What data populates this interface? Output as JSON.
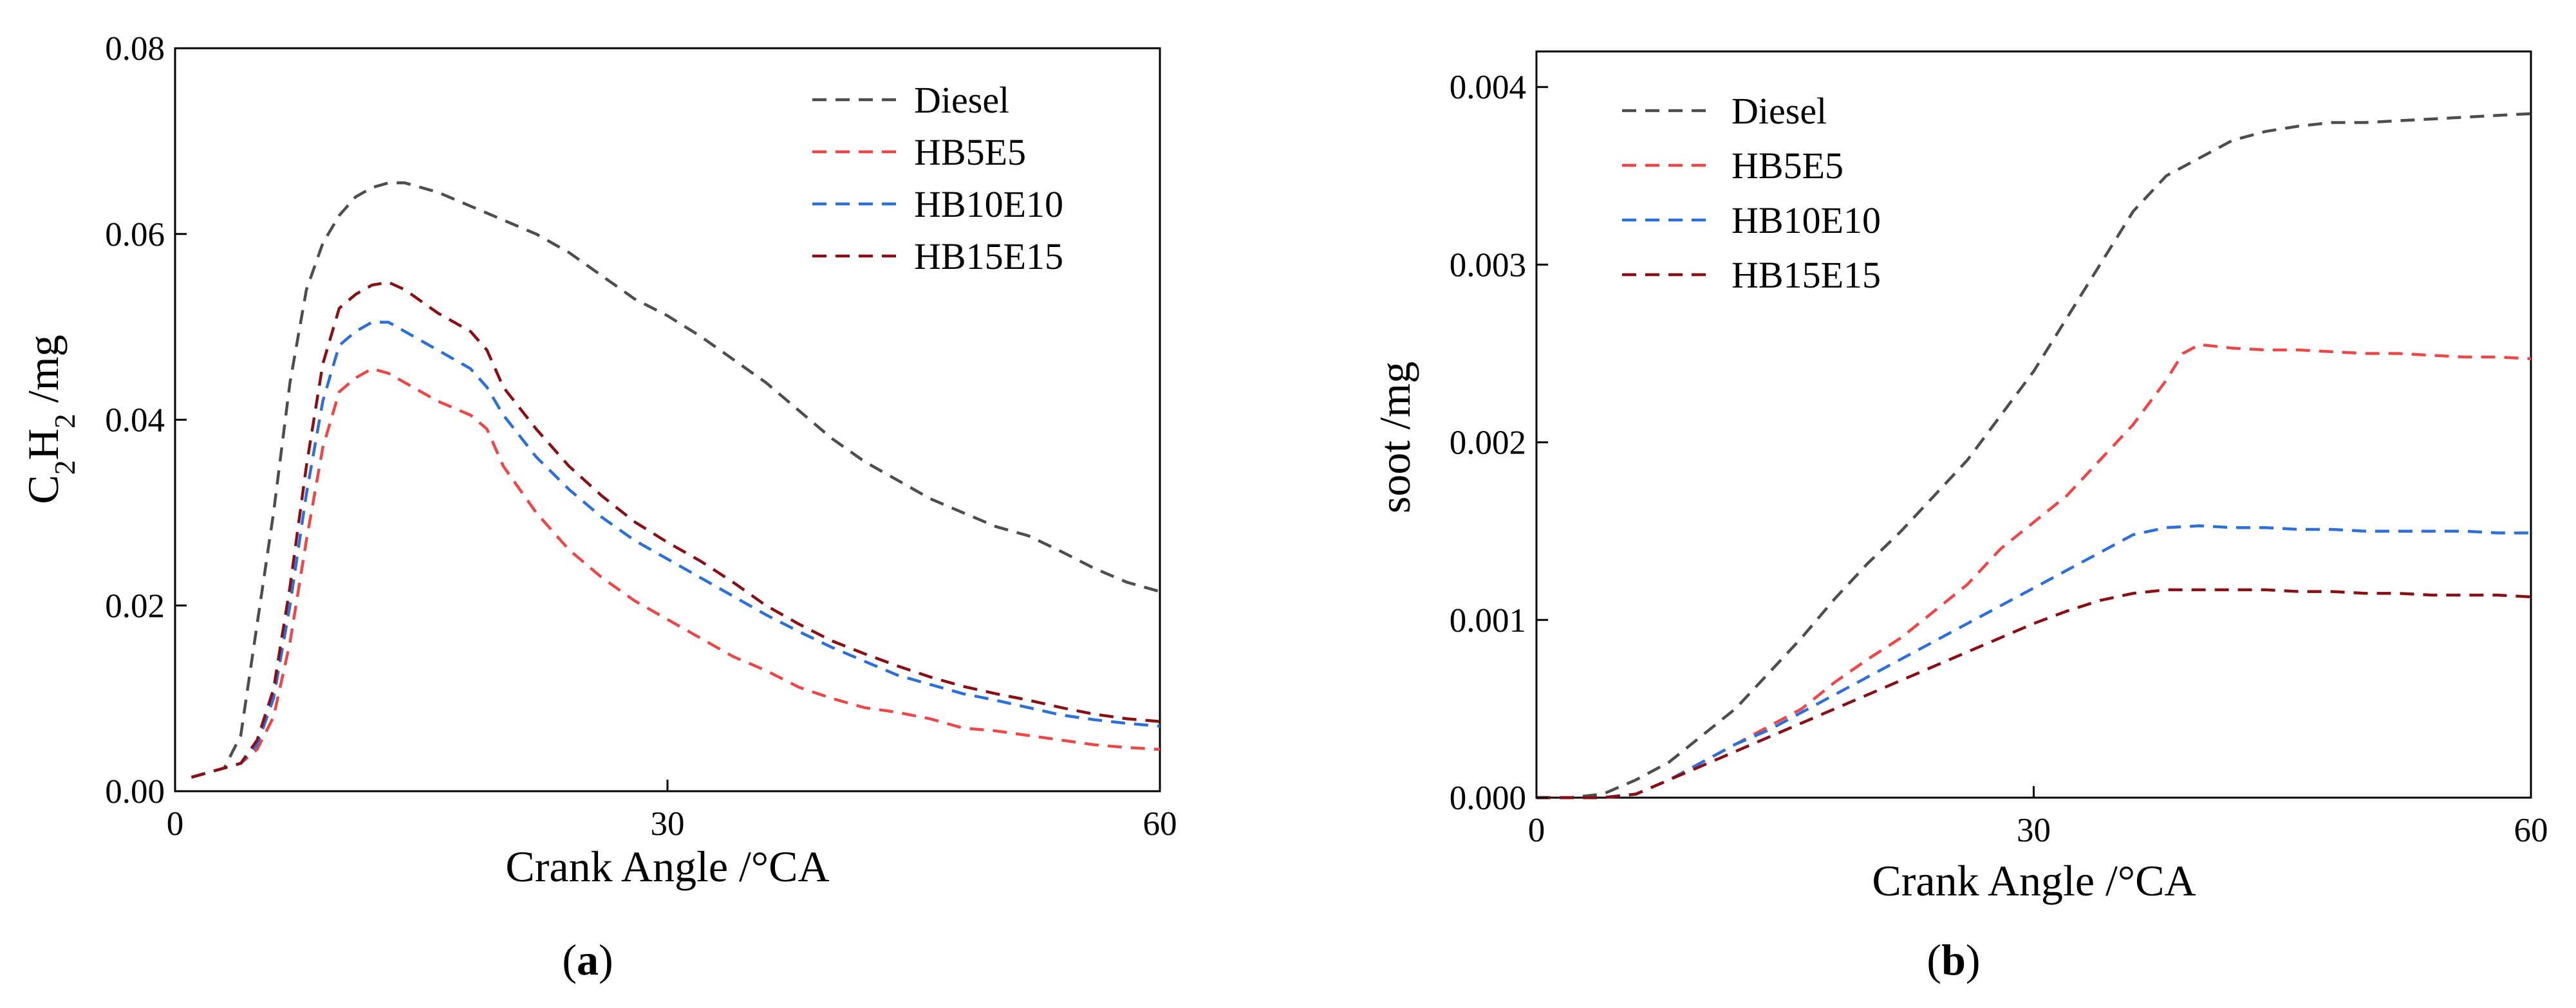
{
  "colors": {
    "Diesel": "#4d4d4d",
    "HB5E5": "#f04545",
    "HB10E10": "#2b6fdc",
    "HB15E15": "#8b0f12"
  },
  "panels": {
    "a": {
      "label": "a"
    },
    "b": {
      "label": "b"
    }
  },
  "chart_data": [
    {
      "type": "line",
      "panel": "a",
      "xlabel": "Crank Angle /°CA",
      "ylabel_parts": [
        "C",
        "2",
        "H",
        "2",
        " /mg"
      ],
      "xlim": [
        0,
        60
      ],
      "ylim": [
        0,
        0.08
      ],
      "xticks": [
        0,
        30,
        60
      ],
      "xtick_labels": [
        "0",
        "30",
        "60"
      ],
      "yticks": [
        0,
        0.02,
        0.04,
        0.06,
        0.08
      ],
      "ytick_labels": [
        "0.00",
        "0.02",
        "0.04",
        "0.06",
        "0.08"
      ],
      "grid": false,
      "legend_position": "top-right",
      "series": [
        {
          "name": "Diesel",
          "x": [
            1,
            2,
            3,
            4,
            5,
            6,
            7,
            8,
            9,
            10,
            11,
            12,
            13,
            14,
            16,
            18,
            20,
            22,
            24,
            26,
            28,
            30,
            32,
            34,
            36,
            38,
            40,
            42,
            44,
            46,
            48,
            50,
            52,
            54,
            56,
            58,
            60
          ],
          "y": [
            0.0015,
            0.002,
            0.0025,
            0.006,
            0.018,
            0.03,
            0.044,
            0.054,
            0.059,
            0.062,
            0.064,
            0.065,
            0.0655,
            0.0655,
            0.0645,
            0.063,
            0.0615,
            0.06,
            0.058,
            0.0555,
            0.053,
            0.0512,
            0.049,
            0.0465,
            0.044,
            0.041,
            0.038,
            0.0355,
            0.0335,
            0.0315,
            0.03,
            0.0285,
            0.0275,
            0.0258,
            0.024,
            0.0225,
            0.0215
          ]
        },
        {
          "name": "HB5E5",
          "x": [
            1,
            2,
            3,
            4,
            5,
            6,
            7,
            8,
            9,
            10,
            11,
            12,
            13,
            14,
            16,
            18,
            19,
            20,
            22,
            24,
            26,
            28,
            30,
            32,
            34,
            36,
            38,
            40,
            42,
            44,
            46,
            48,
            50,
            52,
            54,
            56,
            58,
            60
          ],
          "y": [
            0.0015,
            0.002,
            0.0025,
            0.003,
            0.0045,
            0.008,
            0.016,
            0.027,
            0.037,
            0.043,
            0.0445,
            0.0455,
            0.045,
            0.044,
            0.042,
            0.0405,
            0.039,
            0.035,
            0.03,
            0.026,
            0.023,
            0.0205,
            0.0185,
            0.0165,
            0.0145,
            0.013,
            0.0112,
            0.01,
            0.009,
            0.0085,
            0.0078,
            0.0068,
            0.0065,
            0.006,
            0.0055,
            0.005,
            0.0047,
            0.0045
          ]
        },
        {
          "name": "HB10E10",
          "x": [
            1,
            2,
            3,
            4,
            5,
            6,
            7,
            8,
            9,
            10,
            11,
            12,
            13,
            14,
            16,
            18,
            19,
            20,
            22,
            24,
            26,
            28,
            30,
            32,
            34,
            36,
            38,
            40,
            42,
            44,
            46,
            48,
            50,
            52,
            54,
            56,
            58,
            60
          ],
          "y": [
            0.0015,
            0.002,
            0.0025,
            0.003,
            0.005,
            0.01,
            0.02,
            0.032,
            0.042,
            0.048,
            0.0495,
            0.0505,
            0.0505,
            0.0495,
            0.0475,
            0.0455,
            0.0435,
            0.0405,
            0.036,
            0.0325,
            0.0295,
            0.027,
            0.025,
            0.023,
            0.021,
            0.019,
            0.0172,
            0.0155,
            0.014,
            0.0125,
            0.0115,
            0.0105,
            0.0098,
            0.009,
            0.0082,
            0.0077,
            0.0073,
            0.007
          ]
        },
        {
          "name": "HB15E15",
          "x": [
            1,
            2,
            3,
            4,
            5,
            6,
            7,
            8,
            9,
            10,
            11,
            12,
            13,
            14,
            16,
            18,
            19,
            20,
            22,
            24,
            26,
            28,
            30,
            32,
            34,
            36,
            38,
            40,
            42,
            44,
            46,
            48,
            50,
            52,
            54,
            56,
            58,
            60
          ],
          "y": [
            0.0015,
            0.002,
            0.0025,
            0.003,
            0.0055,
            0.011,
            0.022,
            0.035,
            0.046,
            0.052,
            0.0535,
            0.0545,
            0.0548,
            0.054,
            0.0515,
            0.0495,
            0.0475,
            0.0435,
            0.039,
            0.035,
            0.0318,
            0.029,
            0.0268,
            0.0248,
            0.0225,
            0.02,
            0.018,
            0.0162,
            0.0148,
            0.0135,
            0.0123,
            0.0113,
            0.0105,
            0.0098,
            0.009,
            0.0083,
            0.0078,
            0.0075
          ]
        }
      ]
    },
    {
      "type": "line",
      "panel": "b",
      "xlabel": "Crank Angle /°CA",
      "ylabel": "soot /mg",
      "xlim": [
        0,
        60
      ],
      "ylim": [
        0,
        0.0042
      ],
      "xticks": [
        0,
        30,
        60
      ],
      "xtick_labels": [
        "0",
        "30",
        "60"
      ],
      "yticks": [
        0,
        0.001,
        0.002,
        0.003,
        0.004
      ],
      "ytick_labels": [
        "0.000",
        "0.001",
        "0.002",
        "0.003",
        "0.004"
      ],
      "grid": false,
      "legend_position": "top-left",
      "series": [
        {
          "name": "Diesel",
          "x": [
            0,
            2,
            4,
            6,
            8,
            10,
            12,
            14,
            16,
            18,
            20,
            22,
            24,
            26,
            28,
            30,
            32,
            34,
            36,
            38,
            40,
            42,
            44,
            46,
            48,
            50,
            52,
            54,
            56,
            58,
            60
          ],
          "y": [
            0,
            0,
            2e-05,
            0.0001,
            0.0002,
            0.00035,
            0.0005,
            0.0007,
            0.0009,
            0.00112,
            0.00132,
            0.0015,
            0.0017,
            0.0019,
            0.00215,
            0.0024,
            0.0027,
            0.003,
            0.0033,
            0.0035,
            0.0036,
            0.0037,
            0.00375,
            0.00378,
            0.0038,
            0.0038,
            0.00381,
            0.00382,
            0.00383,
            0.00384,
            0.00385
          ]
        },
        {
          "name": "HB5E5",
          "x": [
            0,
            4,
            6,
            8,
            10,
            12,
            14,
            16,
            18,
            20,
            22,
            24,
            26,
            28,
            30,
            32,
            34,
            36,
            38,
            39,
            40,
            42,
            44,
            46,
            48,
            50,
            52,
            54,
            56,
            58,
            60
          ],
          "y": [
            0,
            0,
            2e-05,
            0.0001,
            0.0002,
            0.0003,
            0.0004,
            0.0005,
            0.00065,
            0.00078,
            0.0009,
            0.00105,
            0.0012,
            0.0014,
            0.00155,
            0.0017,
            0.0019,
            0.0021,
            0.00235,
            0.0025,
            0.00255,
            0.00253,
            0.00252,
            0.00252,
            0.00251,
            0.0025,
            0.0025,
            0.00249,
            0.00248,
            0.00248,
            0.00247
          ]
        },
        {
          "name": "HB10E10",
          "x": [
            0,
            4,
            6,
            8,
            10,
            12,
            14,
            16,
            18,
            20,
            22,
            24,
            26,
            28,
            30,
            32,
            34,
            36,
            38,
            40,
            42,
            44,
            46,
            48,
            50,
            52,
            54,
            56,
            58,
            60
          ],
          "y": [
            0,
            0,
            2e-05,
            0.0001,
            0.0002,
            0.0003,
            0.00038,
            0.00048,
            0.00058,
            0.00068,
            0.00078,
            0.00088,
            0.00098,
            0.00108,
            0.00118,
            0.00128,
            0.00138,
            0.00148,
            0.00152,
            0.00153,
            0.00152,
            0.00152,
            0.00151,
            0.00151,
            0.0015,
            0.0015,
            0.0015,
            0.0015,
            0.00149,
            0.00149
          ]
        },
        {
          "name": "HB15E15",
          "x": [
            0,
            4,
            6,
            8,
            10,
            12,
            14,
            16,
            18,
            20,
            22,
            24,
            26,
            28,
            30,
            32,
            34,
            36,
            38,
            40,
            42,
            44,
            46,
            48,
            50,
            52,
            54,
            56,
            58,
            60
          ],
          "y": [
            0,
            0,
            2e-05,
            0.0001,
            0.00018,
            0.00026,
            0.00034,
            0.00042,
            0.0005,
            0.00058,
            0.00066,
            0.00074,
            0.00082,
            0.0009,
            0.00098,
            0.00105,
            0.00111,
            0.00115,
            0.00117,
            0.00117,
            0.00117,
            0.00117,
            0.00116,
            0.00116,
            0.00115,
            0.00115,
            0.00114,
            0.00114,
            0.00114,
            0.00113
          ]
        }
      ]
    }
  ]
}
